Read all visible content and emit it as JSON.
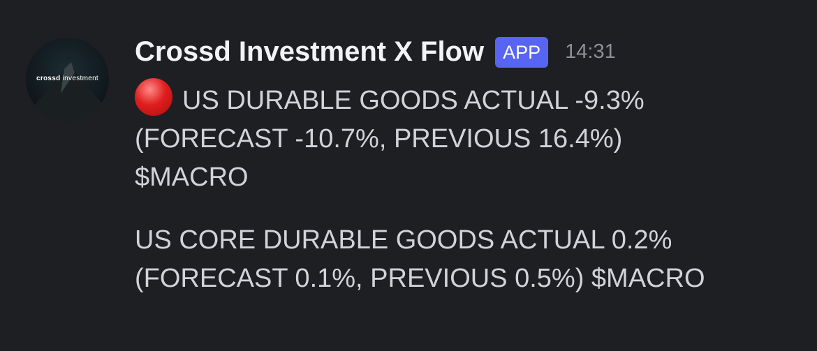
{
  "author": {
    "name": "Crossd Investment X Flow",
    "badge": "APP",
    "time": "14:31",
    "avatar_text_bold": "crossd",
    "avatar_text": "investment"
  },
  "messages": [
    {
      "icon": "red-circle-icon",
      "lines": [
        "US DURABLE GOODS ACTUAL -9.3%",
        "(FORECAST -10.7%, PREVIOUS 16.4%)",
        "$MACRO"
      ]
    },
    {
      "lines": [
        "US CORE DURABLE GOODS ACTUAL 0.2%",
        "(FORECAST 0.1%, PREVIOUS 0.5%) $MACRO"
      ]
    }
  ],
  "colors": {
    "background": "#1e1f23",
    "badge": "#5865f2",
    "text": "#d1d3d8"
  }
}
